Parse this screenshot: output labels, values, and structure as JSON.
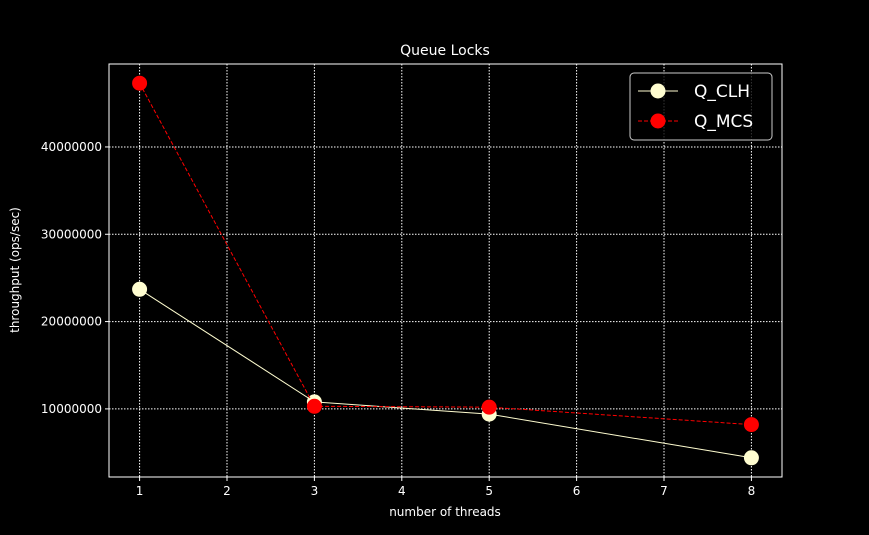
{
  "chart_data": {
    "type": "line",
    "title": "Queue Locks",
    "xlabel": "number of threads",
    "ylabel": "throughput (ops/sec)",
    "x": [
      1,
      3,
      5,
      8
    ],
    "xlim": [
      0.65,
      8.35
    ],
    "ylim": [
      2200000,
      49500000
    ],
    "xticks": [
      1,
      2,
      3,
      4,
      5,
      6,
      7,
      8
    ],
    "yticks": [
      10000000,
      20000000,
      30000000,
      40000000
    ],
    "grid": true,
    "legend_position": "top-right",
    "series": [
      {
        "name": "Q_CLH",
        "values": [
          23700000,
          10800000,
          9400000,
          4400000
        ],
        "color": "#fffdd0",
        "style": "solid"
      },
      {
        "name": "Q_MCS",
        "values": [
          47300000,
          10300000,
          10200000,
          8200000
        ],
        "color": "#ff0000",
        "style": "dashed"
      }
    ]
  }
}
